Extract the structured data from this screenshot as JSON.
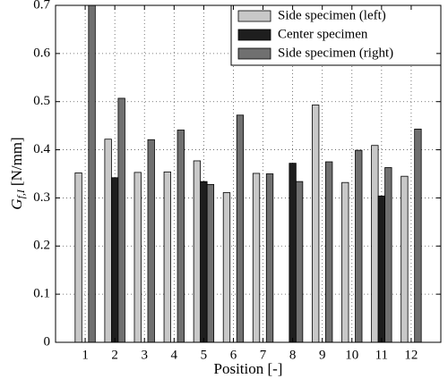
{
  "chart_data": {
    "type": "bar",
    "categories": [
      "1",
      "2",
      "3",
      "4",
      "5",
      "6",
      "7",
      "8",
      "9",
      "10",
      "11",
      "12"
    ],
    "series": [
      {
        "name": "Side specimen (left)",
        "color": "#c8c8c8",
        "values": [
          0.352,
          0.422,
          0.353,
          0.354,
          0.377,
          0.311,
          0.351,
          null,
          0.493,
          0.332,
          0.409,
          0.345
        ]
      },
      {
        "name": "Center specimen",
        "color": "#1e1e1e",
        "values": [
          null,
          0.342,
          null,
          null,
          0.334,
          null,
          null,
          0.372,
          null,
          null,
          0.304,
          null
        ]
      },
      {
        "name": "Side specimen (right)",
        "color": "#707070",
        "values": [
          0.72,
          0.507,
          0.421,
          0.441,
          0.328,
          0.472,
          0.35,
          0.334,
          0.375,
          0.399,
          0.363,
          0.443
        ]
      }
    ],
    "x_label": "Position [-]",
    "y_label": {
      "symbol": "G",
      "subscript": "f,I",
      "unit": "[N/mm]"
    },
    "ylim": [
      0,
      0.7
    ],
    "yticks": [
      0,
      0.1,
      0.2,
      0.3,
      0.4,
      0.5,
      0.6,
      0.7
    ],
    "grid": true,
    "legend": "upper right"
  }
}
